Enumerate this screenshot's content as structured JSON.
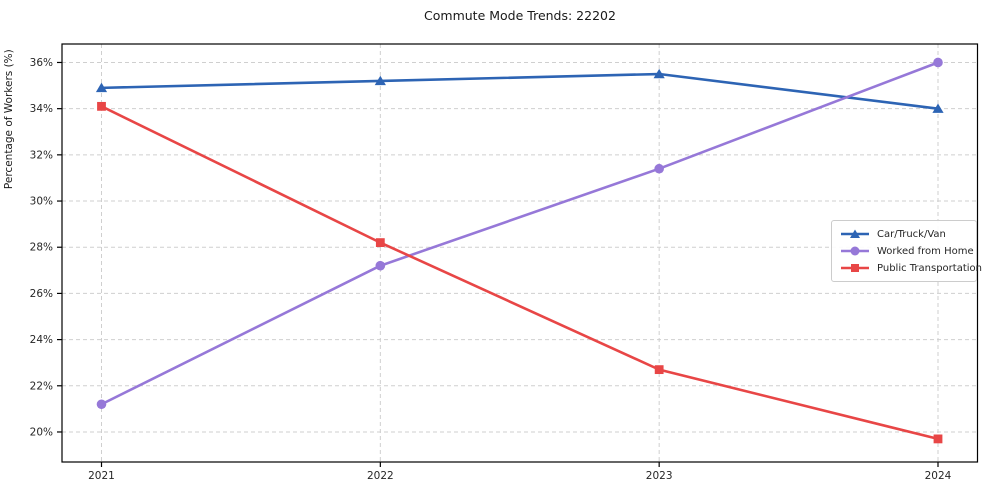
{
  "title": "Commute Mode Trends: 22202",
  "chart_data": {
    "type": "line",
    "title": "Commute Mode Trends: 22202",
    "xlabel": "",
    "ylabel": "Percentage of Workers (%)",
    "categories": [
      "2021",
      "2022",
      "2023",
      "2024"
    ],
    "series": [
      {
        "name": "Car/Truck/Van",
        "marker": "triangle",
        "color": "#2d64b4",
        "values": [
          34.9,
          35.2,
          35.5,
          34.0
        ]
      },
      {
        "name": "Worked from Home",
        "marker": "circle",
        "color": "#9678d8",
        "values": [
          21.2,
          27.2,
          31.4,
          36.0
        ]
      },
      {
        "name": "Public Transportation",
        "marker": "square",
        "color": "#e84646",
        "values": [
          34.1,
          28.2,
          22.7,
          19.7
        ]
      }
    ],
    "ylim": [
      18.7,
      36.8
    ],
    "yticks": [
      20,
      22,
      24,
      26,
      28,
      30,
      32,
      34,
      36
    ],
    "ytick_suffix": "%",
    "grid": true,
    "grid_color": "#cfcfcf",
    "axis_color": "#000000",
    "tick_label_color": "#262626",
    "legend_position": "center-right"
  }
}
